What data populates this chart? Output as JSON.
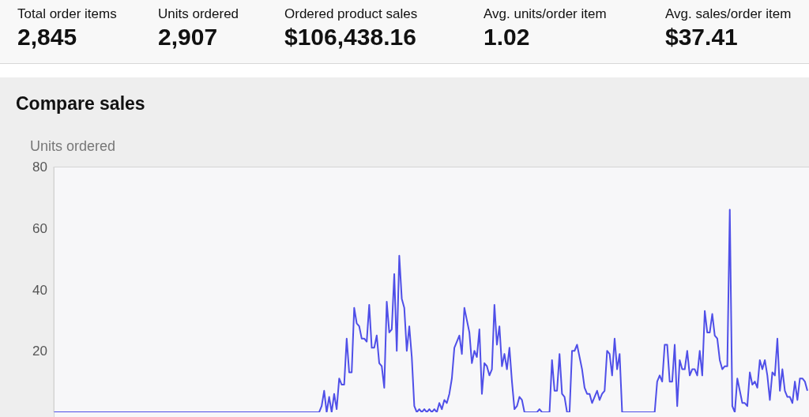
{
  "chart_data": [
    {
      "type": "other",
      "annotations": [
        "Total order items",
        "2,845",
        "Units ordered",
        "2,907",
        "Ordered product sales",
        "$106,438.16",
        "Avg. units/order item",
        "1.02",
        "Avg. sales/order item",
        "$37.41"
      ]
    },
    {
      "type": "line",
      "title": "Compare sales",
      "ylabel": "Units ordered",
      "ylim": [
        0,
        80
      ],
      "yticks": [
        20,
        40,
        60,
        80
      ],
      "grid": false,
      "legend": false,
      "marker": "none",
      "line_style": "solid",
      "categories": [
        null,
        null,
        null,
        null,
        null,
        null,
        null,
        null,
        null,
        null,
        null,
        null,
        null,
        null,
        null,
        null,
        null,
        null,
        null,
        null,
        null,
        null,
        null,
        null,
        null,
        null,
        null,
        null,
        null,
        null,
        null,
        null,
        null,
        null,
        null,
        null,
        null,
        null,
        null,
        null,
        null,
        null,
        null,
        null,
        null,
        null,
        null,
        null,
        null,
        null,
        null,
        null,
        null,
        null,
        null,
        null,
        null,
        null,
        null,
        null,
        null,
        null,
        null,
        null,
        null,
        null,
        null,
        null,
        null,
        null,
        null,
        null,
        null,
        null,
        null,
        null,
        null,
        null,
        null,
        null,
        null,
        null,
        null,
        null,
        null,
        null,
        null,
        null,
        null,
        null,
        null,
        null,
        null,
        null,
        null,
        null,
        null,
        null,
        null,
        null,
        null,
        null,
        null,
        null,
        null,
        null,
        null,
        null,
        null,
        null,
        null,
        null,
        null,
        null,
        null,
        null,
        null,
        null,
        null,
        null,
        null,
        null,
        null,
        null,
        null,
        null,
        null,
        null,
        null,
        null,
        null,
        null,
        null,
        null,
        null,
        null,
        null,
        null,
        null,
        null,
        null,
        null,
        null,
        null,
        null,
        null,
        null,
        null,
        null,
        null,
        null,
        null,
        null,
        null,
        null,
        null,
        null,
        null,
        null,
        null,
        null,
        null,
        null,
        null,
        null,
        null,
        null,
        null,
        null,
        null,
        null,
        null,
        null,
        null,
        null,
        null,
        null,
        null,
        null,
        null,
        null,
        null,
        null,
        null,
        null,
        null,
        null,
        null,
        null,
        null,
        null,
        null,
        null,
        null,
        null,
        null,
        null,
        null,
        null,
        null,
        null,
        null,
        null,
        null,
        null,
        null,
        null,
        null,
        null,
        null,
        null,
        null,
        null,
        null,
        null,
        null,
        null,
        null,
        null,
        null,
        null,
        null,
        null,
        null,
        null,
        null,
        null,
        null,
        null,
        null,
        null,
        null,
        null,
        null,
        null,
        null,
        null,
        null,
        null,
        null,
        null,
        null,
        null,
        null,
        null,
        null,
        null,
        null,
        null,
        null,
        null,
        null,
        null,
        null,
        null,
        null,
        null,
        null,
        null,
        null,
        null,
        null,
        null,
        null,
        null,
        null,
        null,
        null,
        null,
        null,
        null,
        null,
        null,
        null,
        null,
        null,
        null,
        null,
        null,
        null,
        null,
        null,
        null,
        null,
        null,
        null,
        null,
        null,
        null,
        null,
        null,
        null,
        null,
        null,
        null,
        null,
        null,
        null,
        null,
        null,
        null,
        null
      ],
      "series": [
        {
          "color": "#4f4fe8",
          "values": [
            0,
            0,
            0,
            0,
            0,
            0,
            0,
            0,
            0,
            0,
            0,
            0,
            0,
            0,
            0,
            0,
            0,
            0,
            0,
            0,
            0,
            0,
            0,
            0,
            0,
            0,
            0,
            0,
            0,
            0,
            0,
            0,
            0,
            0,
            0,
            0,
            0,
            0,
            0,
            0,
            0,
            0,
            0,
            0,
            0,
            0,
            0,
            0,
            0,
            0,
            0,
            0,
            0,
            0,
            0,
            0,
            0,
            0,
            0,
            0,
            0,
            0,
            0,
            0,
            0,
            0,
            0,
            0,
            0,
            0,
            0,
            0,
            0,
            0,
            0,
            0,
            0,
            0,
            0,
            0,
            0,
            0,
            0,
            0,
            0,
            0,
            0,
            0,
            0,
            0,
            0,
            0,
            0,
            0,
            0,
            0,
            0,
            0,
            0,
            0,
            0,
            0,
            0,
            0,
            0,
            0,
            0,
            2,
            7,
            0,
            5,
            0,
            6,
            1,
            11,
            9,
            9,
            24,
            13,
            13,
            34,
            29,
            28,
            24,
            24,
            23,
            35,
            21,
            21,
            25,
            16,
            15,
            8,
            36,
            26,
            27,
            45,
            20,
            51,
            37,
            34,
            20,
            28,
            18,
            2,
            0,
            1,
            0,
            1,
            0,
            1,
            0,
            1,
            0,
            3,
            1,
            4,
            3,
            6,
            11,
            21,
            23,
            25,
            19,
            34,
            30,
            26,
            16,
            20,
            18,
            27,
            6,
            16,
            15,
            12,
            14,
            35,
            22,
            28,
            15,
            19,
            14,
            21,
            10,
            1,
            2,
            5,
            4,
            0,
            0,
            0,
            0,
            0,
            0,
            1,
            0,
            0,
            0,
            0,
            17,
            7,
            7,
            19,
            6,
            5,
            0,
            0,
            20,
            20,
            22,
            18,
            14,
            8,
            6,
            6,
            3,
            5,
            7,
            4,
            6,
            7,
            20,
            19,
            12,
            24,
            14,
            19,
            0,
            0,
            0,
            0,
            0,
            0,
            0,
            0,
            0,
            0,
            0,
            0,
            0,
            0,
            10,
            12,
            10,
            22,
            22,
            10,
            10,
            22,
            2,
            17,
            14,
            14,
            20,
            12,
            14,
            14,
            12,
            20,
            12,
            33,
            26,
            26,
            32,
            25,
            24,
            17,
            14,
            15,
            15,
            66,
            2,
            0,
            11,
            7,
            3,
            3,
            2,
            13,
            9,
            10,
            8,
            17,
            14,
            17,
            12,
            4,
            13,
            12,
            24,
            7,
            14,
            7,
            5,
            5,
            3,
            10,
            4,
            11,
            11,
            10,
            7
          ]
        }
      ]
    }
  ]
}
